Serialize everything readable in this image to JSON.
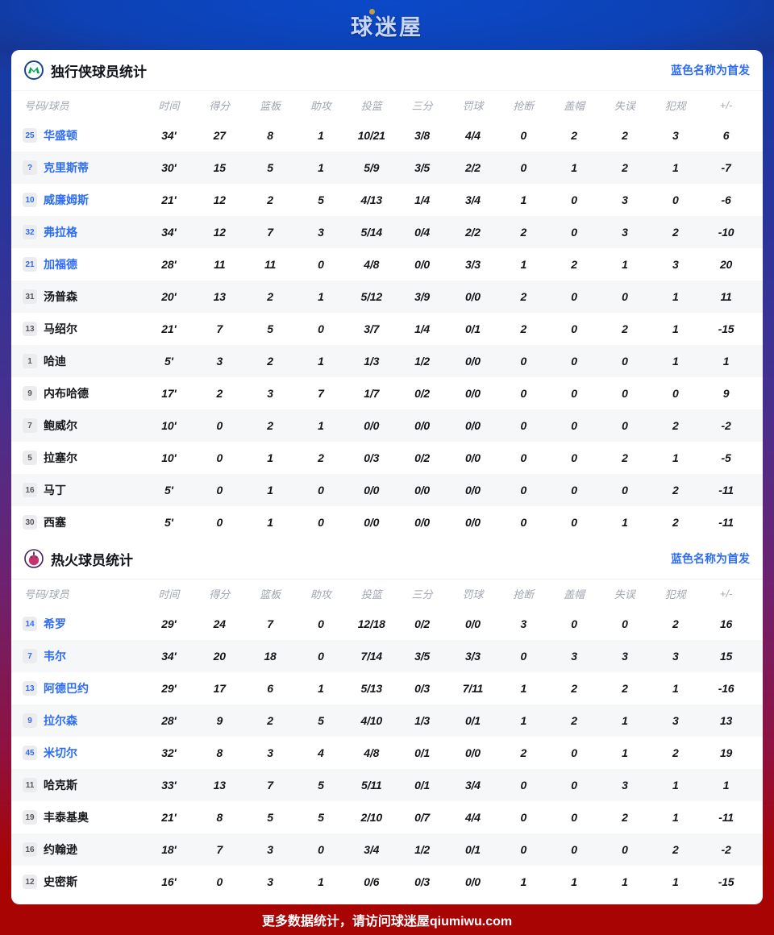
{
  "brand": {
    "logo_text": "球迷屋"
  },
  "legend": "蓝色名称为首发",
  "columns": [
    "号码/球员",
    "时间",
    "得分",
    "篮板",
    "助攻",
    "投篮",
    "三分",
    "罚球",
    "抢断",
    "盖帽",
    "失误",
    "犯规",
    "+/-"
  ],
  "footer": {
    "text": "更多数据统计，请访问球迷屋qiumiwu.com"
  },
  "colors": {
    "starter_blue": "#2e6cf6",
    "header_blue": "#0b49c8",
    "footer_red": "#a80404",
    "zebra_gray": "#f6f7f9"
  },
  "teams": [
    {
      "title": "独行侠球员统计",
      "logo": "mavericks-logo",
      "players": [
        {
          "num": "25",
          "name": "华盛顿",
          "starter": true,
          "stats": [
            "34'",
            "27",
            "8",
            "1",
            "10/21",
            "3/8",
            "4/4",
            "0",
            "2",
            "2",
            "3",
            "6"
          ]
        },
        {
          "num": "?",
          "name": "克里斯蒂",
          "starter": true,
          "stats": [
            "30'",
            "15",
            "5",
            "1",
            "5/9",
            "3/5",
            "2/2",
            "0",
            "1",
            "2",
            "1",
            "-7"
          ]
        },
        {
          "num": "10",
          "name": "威廉姆斯",
          "starter": true,
          "stats": [
            "21'",
            "12",
            "2",
            "5",
            "4/13",
            "1/4",
            "3/4",
            "1",
            "0",
            "3",
            "0",
            "-6"
          ]
        },
        {
          "num": "32",
          "name": "弗拉格",
          "starter": true,
          "stats": [
            "34'",
            "12",
            "7",
            "3",
            "5/14",
            "0/4",
            "2/2",
            "2",
            "0",
            "3",
            "2",
            "-10"
          ]
        },
        {
          "num": "21",
          "name": "加福德",
          "starter": true,
          "stats": [
            "28'",
            "11",
            "11",
            "0",
            "4/8",
            "0/0",
            "3/3",
            "1",
            "2",
            "1",
            "3",
            "20"
          ]
        },
        {
          "num": "31",
          "name": "汤普森",
          "starter": false,
          "stats": [
            "20'",
            "13",
            "2",
            "1",
            "5/12",
            "3/9",
            "0/0",
            "2",
            "0",
            "0",
            "1",
            "11"
          ]
        },
        {
          "num": "13",
          "name": "马绍尔",
          "starter": false,
          "stats": [
            "21'",
            "7",
            "5",
            "0",
            "3/7",
            "1/4",
            "0/1",
            "2",
            "0",
            "2",
            "1",
            "-15"
          ]
        },
        {
          "num": "1",
          "name": "哈迪",
          "starter": false,
          "stats": [
            "5'",
            "3",
            "2",
            "1",
            "1/3",
            "1/2",
            "0/0",
            "0",
            "0",
            "0",
            "1",
            "1"
          ]
        },
        {
          "num": "9",
          "name": "内布哈德",
          "starter": false,
          "stats": [
            "17'",
            "2",
            "3",
            "7",
            "1/7",
            "0/2",
            "0/0",
            "0",
            "0",
            "0",
            "0",
            "9"
          ]
        },
        {
          "num": "7",
          "name": "鲍威尔",
          "starter": false,
          "stats": [
            "10'",
            "0",
            "2",
            "1",
            "0/0",
            "0/0",
            "0/0",
            "0",
            "0",
            "0",
            "2",
            "-2"
          ]
        },
        {
          "num": "5",
          "name": "拉塞尔",
          "starter": false,
          "stats": [
            "10'",
            "0",
            "1",
            "2",
            "0/3",
            "0/2",
            "0/0",
            "0",
            "0",
            "2",
            "1",
            "-5"
          ]
        },
        {
          "num": "16",
          "name": "马丁",
          "starter": false,
          "stats": [
            "5'",
            "0",
            "1",
            "0",
            "0/0",
            "0/0",
            "0/0",
            "0",
            "0",
            "0",
            "2",
            "-11"
          ]
        },
        {
          "num": "30",
          "name": "西塞",
          "starter": false,
          "stats": [
            "5'",
            "0",
            "1",
            "0",
            "0/0",
            "0/0",
            "0/0",
            "0",
            "0",
            "1",
            "2",
            "-11"
          ]
        }
      ]
    },
    {
      "title": "热火球员统计",
      "logo": "heat-logo",
      "players": [
        {
          "num": "14",
          "name": "希罗",
          "starter": true,
          "stats": [
            "29'",
            "24",
            "7",
            "0",
            "12/18",
            "0/2",
            "0/0",
            "3",
            "0",
            "0",
            "2",
            "16"
          ]
        },
        {
          "num": "7",
          "name": "韦尔",
          "starter": true,
          "stats": [
            "34'",
            "20",
            "18",
            "0",
            "7/14",
            "3/5",
            "3/3",
            "0",
            "3",
            "3",
            "3",
            "15"
          ]
        },
        {
          "num": "13",
          "name": "阿德巴约",
          "starter": true,
          "stats": [
            "29'",
            "17",
            "6",
            "1",
            "5/13",
            "0/3",
            "7/11",
            "1",
            "2",
            "2",
            "1",
            "-16"
          ]
        },
        {
          "num": "9",
          "name": "拉尔森",
          "starter": true,
          "stats": [
            "28'",
            "9",
            "2",
            "5",
            "4/10",
            "1/3",
            "0/1",
            "1",
            "2",
            "1",
            "3",
            "13"
          ]
        },
        {
          "num": "45",
          "name": "米切尔",
          "starter": true,
          "stats": [
            "32'",
            "8",
            "3",
            "4",
            "4/8",
            "0/1",
            "0/0",
            "2",
            "0",
            "1",
            "2",
            "19"
          ]
        },
        {
          "num": "11",
          "name": "哈克斯",
          "starter": false,
          "stats": [
            "33'",
            "13",
            "7",
            "5",
            "5/11",
            "0/1",
            "3/4",
            "0",
            "0",
            "3",
            "1",
            "1"
          ]
        },
        {
          "num": "19",
          "name": "丰泰基奥",
          "starter": false,
          "stats": [
            "21'",
            "8",
            "5",
            "5",
            "2/10",
            "0/7",
            "4/4",
            "0",
            "0",
            "2",
            "1",
            "-11"
          ]
        },
        {
          "num": "16",
          "name": "约翰逊",
          "starter": false,
          "stats": [
            "18'",
            "7",
            "3",
            "0",
            "3/4",
            "1/2",
            "0/1",
            "0",
            "0",
            "0",
            "2",
            "-2"
          ]
        },
        {
          "num": "12",
          "name": "史密斯",
          "starter": false,
          "stats": [
            "16'",
            "0",
            "3",
            "1",
            "0/6",
            "0/3",
            "0/0",
            "1",
            "1",
            "1",
            "1",
            "-15"
          ]
        }
      ]
    }
  ]
}
